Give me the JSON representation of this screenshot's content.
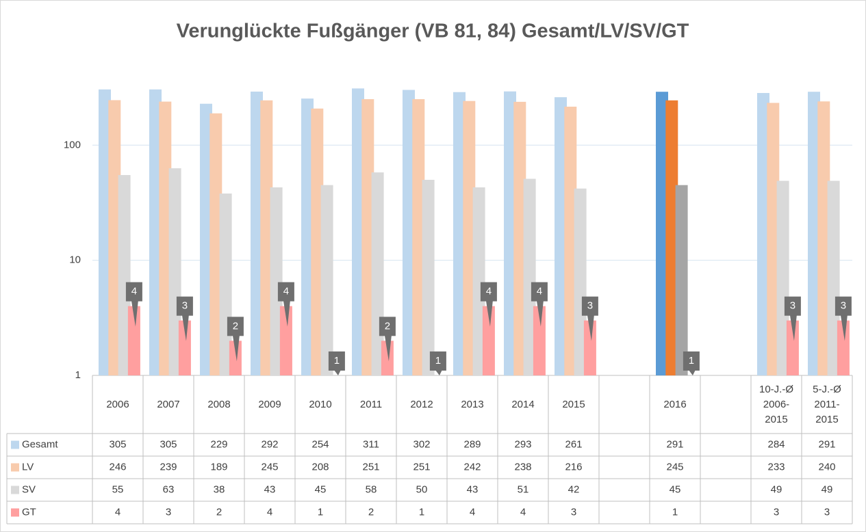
{
  "chart_data": {
    "type": "bar",
    "title": "Verunglückte Fußgänger (VB 81, 84) Gesamt/LV/SV/GT",
    "categories": [
      "2006",
      "2007",
      "2008",
      "2009",
      "2010",
      "2011",
      "2012",
      "2013",
      "2014",
      "2015",
      null,
      "2016",
      null,
      "10-J.-Ø\n2006-\n2015",
      "5-J.-Ø\n2011-\n2015"
    ],
    "series": [
      {
        "name": "Gesamt",
        "color": "#bdd7ee",
        "colors": [
          "#bdd7ee",
          "#bdd7ee",
          "#bdd7ee",
          "#bdd7ee",
          "#bdd7ee",
          "#bdd7ee",
          "#bdd7ee",
          "#bdd7ee",
          "#bdd7ee",
          "#bdd7ee",
          "#bdd7ee",
          "#5b9bd5",
          "#bdd7ee",
          "#bdd7ee",
          "#bdd7ee"
        ],
        "values": [
          305,
          305,
          229,
          292,
          254,
          311,
          302,
          289,
          293,
          261,
          null,
          291,
          null,
          284,
          291
        ]
      },
      {
        "name": "LV",
        "color": "#f8cbad",
        "colors": [
          "#f8cbad",
          "#f8cbad",
          "#f8cbad",
          "#f8cbad",
          "#f8cbad",
          "#f8cbad",
          "#f8cbad",
          "#f8cbad",
          "#f8cbad",
          "#f8cbad",
          "#f8cbad",
          "#ed7d31",
          "#f8cbad",
          "#f8cbad",
          "#f8cbad"
        ],
        "values": [
          246,
          239,
          189,
          245,
          208,
          251,
          251,
          242,
          238,
          216,
          null,
          245,
          null,
          233,
          240
        ]
      },
      {
        "name": "SV",
        "color": "#d9d9d9",
        "colors": [
          "#d9d9d9",
          "#d9d9d9",
          "#d9d9d9",
          "#d9d9d9",
          "#d9d9d9",
          "#d9d9d9",
          "#d9d9d9",
          "#d9d9d9",
          "#d9d9d9",
          "#d9d9d9",
          "#d9d9d9",
          "#a5a5a5",
          "#d9d9d9",
          "#d9d9d9",
          "#d9d9d9"
        ],
        "values": [
          55,
          63,
          38,
          43,
          45,
          58,
          50,
          43,
          51,
          42,
          null,
          45,
          null,
          49,
          49
        ]
      },
      {
        "name": "GT",
        "color": "#ff9f9f",
        "colors": [
          "#ff9f9f",
          "#ff9f9f",
          "#ff9f9f",
          "#ff9f9f",
          "#ff9f9f",
          "#ff9f9f",
          "#ff9f9f",
          "#ff9f9f",
          "#ff9f9f",
          "#ff9f9f",
          "#ff9f9f",
          "#ff6b6b",
          "#ff9f9f",
          "#ff9f9f",
          "#ff9f9f"
        ],
        "values": [
          4,
          3,
          2,
          4,
          1,
          2,
          1,
          4,
          4,
          3,
          null,
          1,
          null,
          3,
          3
        ],
        "data_labels": true
      }
    ],
    "log_scale": true,
    "ylim": [
      1,
      330
    ],
    "yticks": [
      1,
      10,
      100
    ],
    "grid": true,
    "data_table": true
  }
}
